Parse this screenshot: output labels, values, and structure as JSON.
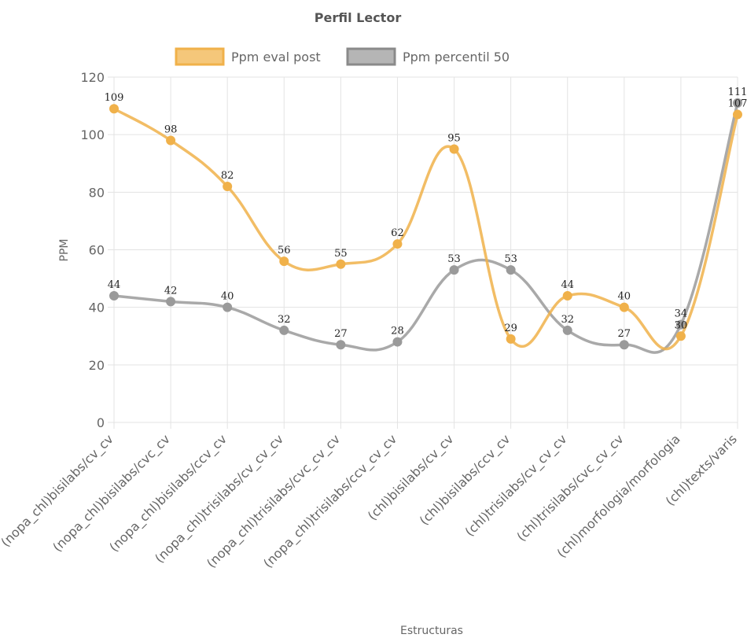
{
  "chart_data": {
    "type": "line",
    "title": "Perfil Lector",
    "xlabel": "Estructuras",
    "ylabel": "PPM",
    "ylim": [
      0,
      120
    ],
    "yticks": [
      0,
      20,
      40,
      60,
      80,
      100,
      120
    ],
    "grid": true,
    "legend": "top",
    "categories": [
      "(nopa_chl)bisilabs/cv_cv",
      "(nopa_chl)bisilabs/cvc_cv",
      "(nopa_chl)bisilabs/ccv_cv",
      "(nopa_chl)trisilabs/cv_cv_cv",
      "(nopa_chl)trisilabs/cvc_cv_cv",
      "(nopa_chl)trisilabs/ccv_cv_cv",
      "(chl)bisilabs/cv_cv",
      "(chl)bisilabs/ccv_cv",
      "(chl)trisilabs/cv_cv_cv",
      "(chl)trisilabs/cvc_cv_cv",
      "(chl)morfologia/morfologia",
      "(chl)texts/varis"
    ],
    "series": [
      {
        "name": "Ppm eval post",
        "color": "#f0b14a",
        "fill": "#f5c77a",
        "values": [
          109,
          98,
          82,
          56,
          55,
          62,
          95,
          29,
          44,
          40,
          30,
          107
        ]
      },
      {
        "name": "Ppm percentil 50",
        "color": "#9a9a9a",
        "fill": "#b5b5b5",
        "values": [
          44,
          42,
          40,
          32,
          27,
          28,
          53,
          53,
          32,
          27,
          34,
          111
        ]
      }
    ]
  }
}
